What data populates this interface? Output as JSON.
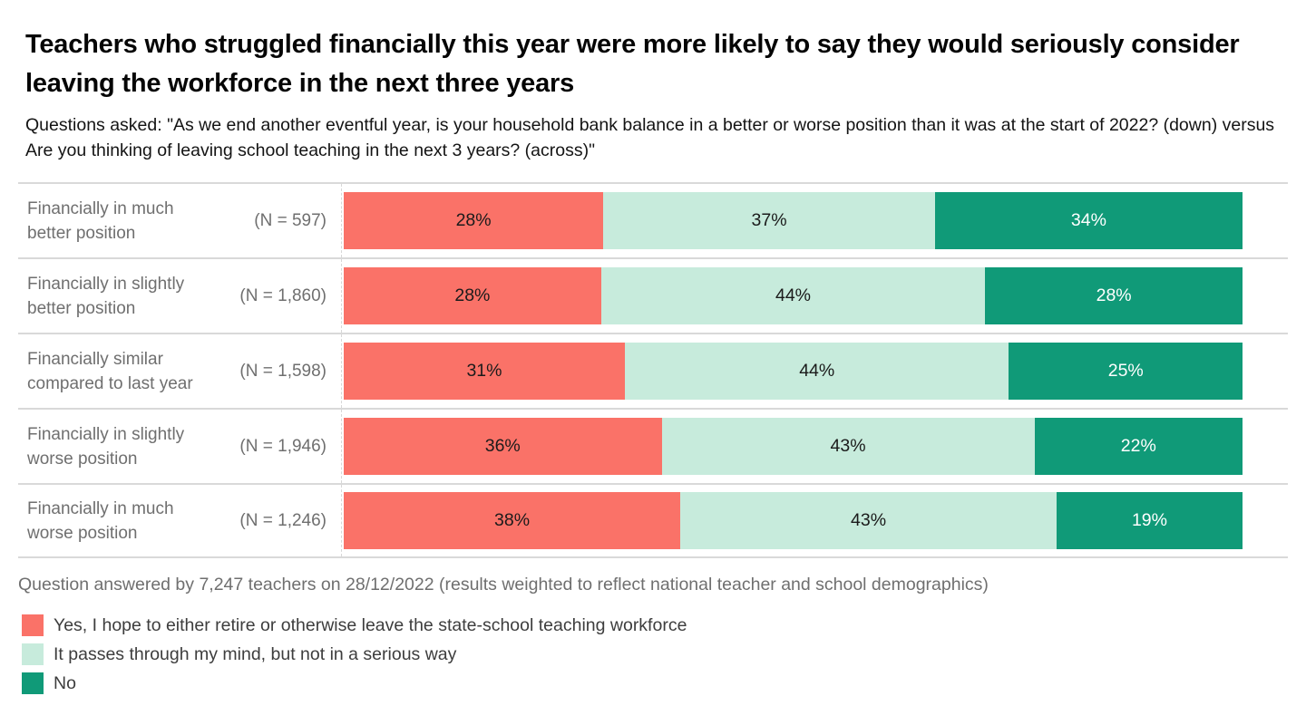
{
  "page": {
    "title": "Teachers who struggled financially this year were more likely to say they would seriously consider leaving the workforce in the next three years",
    "subtitle": "Questions asked: \"As we end another eventful year, is your household bank balance in a better or worse position than it was at the start of 2022? (down) versus Are you thinking of leaving school teaching in the next 3 years? (across)\"",
    "footnote": "Question answered by 7,247 teachers on 28/12/2022 (results weighted to reflect national teacher and school demographics)"
  },
  "chart_data": {
    "type": "bar",
    "orientation": "horizontal_stacked",
    "value_suffix": "%",
    "grid": false,
    "legend_position": "bottom-left",
    "xlim": [
      0,
      100
    ],
    "categories": [
      "Financially in much better position",
      "Financially in slightly better position",
      "Financially similar compared to last year",
      "Financially in slightly worse position",
      "Financially in much worse position"
    ],
    "sample_sizes": [
      "(N = 597)",
      "(N = 1,860)",
      "(N = 1,598)",
      "(N = 1,946)",
      "(N = 1,246)"
    ],
    "series": [
      {
        "name": "Yes, I hope to either retire or otherwise leave the state-school teaching workforce",
        "color": "#FA7268",
        "text_color": "#1b1b1b",
        "values": [
          28,
          28,
          31,
          36,
          38
        ]
      },
      {
        "name": "It passes through my mind, but not in a serious way",
        "color": "#C7EBDC",
        "text_color": "#1b1b1b",
        "values": [
          37,
          44,
          44,
          43,
          43
        ]
      },
      {
        "name": "No",
        "color": "#109A78",
        "text_color": "#ffffff",
        "values": [
          34,
          28,
          25,
          22,
          19
        ]
      }
    ]
  }
}
